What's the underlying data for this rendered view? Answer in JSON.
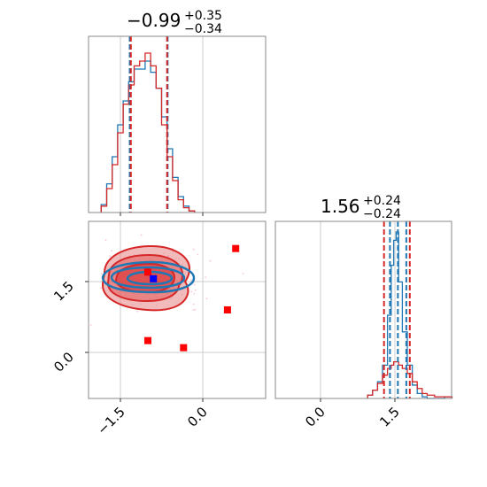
{
  "chart_data": {
    "type": "corner",
    "grid": true,
    "series": [
      {
        "name": "",
        "color": "#1f77b4"
      },
      {
        "name": "",
        "color": "#d62728"
      }
    ],
    "parameters": [
      {
        "median": "−0.99",
        "plus": "+0.35",
        "minus": "−0.34",
        "range": [
          -2.1,
          0.65
        ],
        "blue_quantiles": [
          -1.33,
          -0.99,
          -0.64
        ],
        "red_quantiles": [
          -1.31,
          -0.99,
          -0.65
        ]
      },
      {
        "median": "1.56",
        "plus": "+0.24",
        "minus": "−0.24",
        "range": [
          -0.9,
          2.7
        ],
        "blue_quantiles": [
          1.4,
          1.56,
          1.73
        ],
        "red_quantiles": [
          1.28,
          1.56,
          1.8
        ]
      }
    ],
    "ticks": {
      "x0": {
        "values": [
          -1.5,
          0.0
        ],
        "labels": [
          "−1.5",
          "0.0"
        ]
      },
      "x1": {
        "values": [
          0.0,
          1.5
        ],
        "labels": [
          "0.0",
          "1.5"
        ]
      },
      "y1": {
        "values": [
          0.0,
          1.5
        ],
        "labels": [
          "0.0",
          "1.5"
        ]
      }
    },
    "hist_x0": {
      "x": [
        -1.8,
        -1.7,
        -1.6,
        -1.5,
        -1.4,
        -1.3,
        -1.2,
        -1.1,
        -1.0,
        -0.9,
        -0.8,
        -0.7,
        -0.6,
        -0.5,
        -0.4,
        -0.3,
        -0.2
      ],
      "blue": [
        0.05,
        0.18,
        0.35,
        0.55,
        0.7,
        0.82,
        0.9,
        0.9,
        0.95,
        0.88,
        0.78,
        0.6,
        0.4,
        0.22,
        0.1,
        0.04,
        0.01
      ],
      "red": [
        0.04,
        0.15,
        0.3,
        0.5,
        0.68,
        0.8,
        0.92,
        0.95,
        1.0,
        0.92,
        0.78,
        0.55,
        0.35,
        0.2,
        0.08,
        0.03,
        0.01
      ]
    },
    "hist_x1": {
      "x": [
        1.0,
        1.1,
        1.2,
        1.3,
        1.4,
        1.45,
        1.5,
        1.55,
        1.6,
        1.7,
        1.8,
        1.9,
        2.0,
        2.1,
        2.2,
        2.4,
        2.6
      ],
      "blue": [
        0.02,
        0.05,
        0.1,
        0.2,
        0.5,
        0.8,
        0.95,
        1.0,
        0.7,
        0.4,
        0.2,
        0.08,
        0.03,
        0.01,
        0.0,
        0.0,
        0.01
      ],
      "red": [
        0.02,
        0.05,
        0.09,
        0.14,
        0.18,
        0.2,
        0.22,
        0.22,
        0.2,
        0.18,
        0.15,
        0.1,
        0.06,
        0.03,
        0.02,
        0.01,
        0.01
      ]
    },
    "center": [
      -0.9,
      1.56
    ],
    "red_points": [
      {
        "x": 0.6,
        "y": 2.2
      },
      {
        "x": 0.45,
        "y": 0.9
      },
      {
        "x": -1.0,
        "y": 0.25
      },
      {
        "x": -0.35,
        "y": 0.1
      },
      {
        "x": -1.0,
        "y": 1.7
      }
    ],
    "blue_point": {
      "x": -0.9,
      "y": 1.56
    }
  }
}
